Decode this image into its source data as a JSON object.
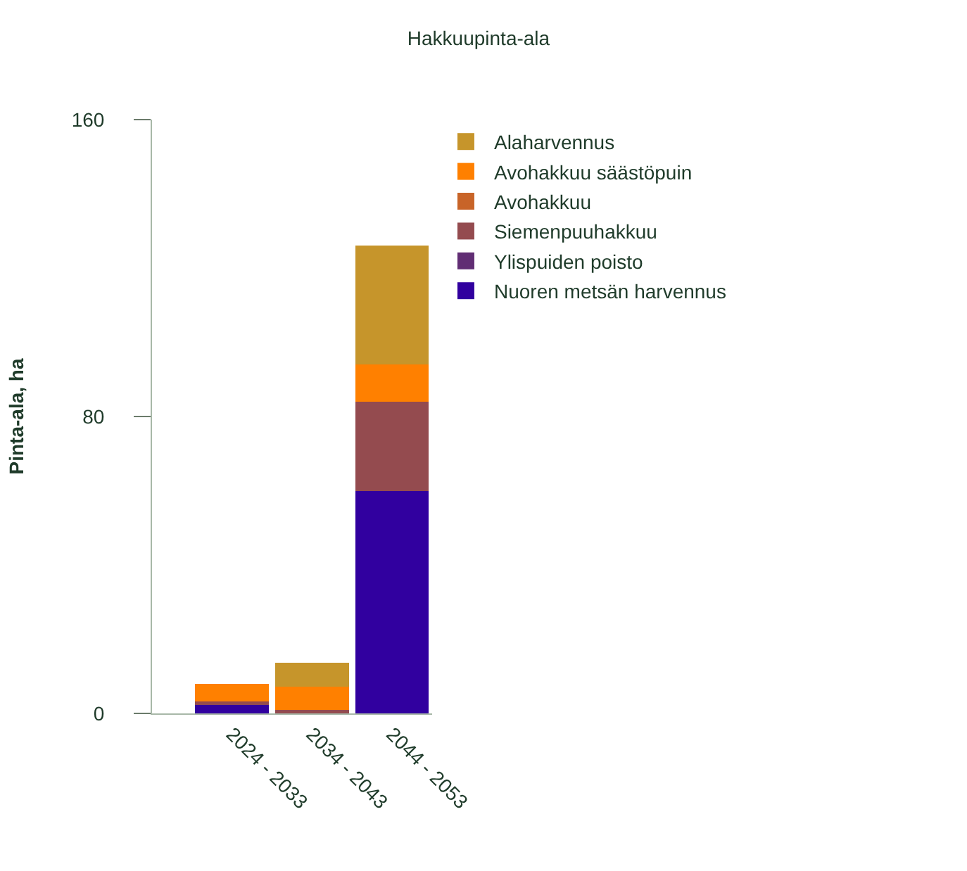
{
  "chart_data": {
    "type": "bar",
    "stacked": true,
    "title": "Hakkuupinta-ala",
    "ylabel": "Pinta-ala, ha",
    "categories": [
      "2024 - 2033",
      "2034 - 2043",
      "2044 - 2053"
    ],
    "series": [
      {
        "name": "Nuoren metsän harvennus",
        "color": "#31009f",
        "values": [
          2.5,
          0,
          60
        ]
      },
      {
        "name": "Ylispuiden poisto",
        "color": "#612d74",
        "values": [
          0,
          0,
          0
        ]
      },
      {
        "name": "Siemenpuuhakkuu",
        "color": "#944b4f",
        "values": [
          0.7,
          1,
          24
        ]
      },
      {
        "name": "Avohakkuu",
        "color": "#c86428",
        "values": [
          0,
          0,
          0
        ]
      },
      {
        "name": "Avohakkuu säästöpuin",
        "color": "#ff8000",
        "values": [
          4.8,
          6.2,
          10
        ]
      },
      {
        "name": "Alaharvennus",
        "color": "#c6952b",
        "values": [
          0,
          6.4,
          32
        ]
      }
    ],
    "ylim": [
      0,
      160
    ],
    "yticks": [
      0,
      80,
      160
    ],
    "legend": "right"
  }
}
